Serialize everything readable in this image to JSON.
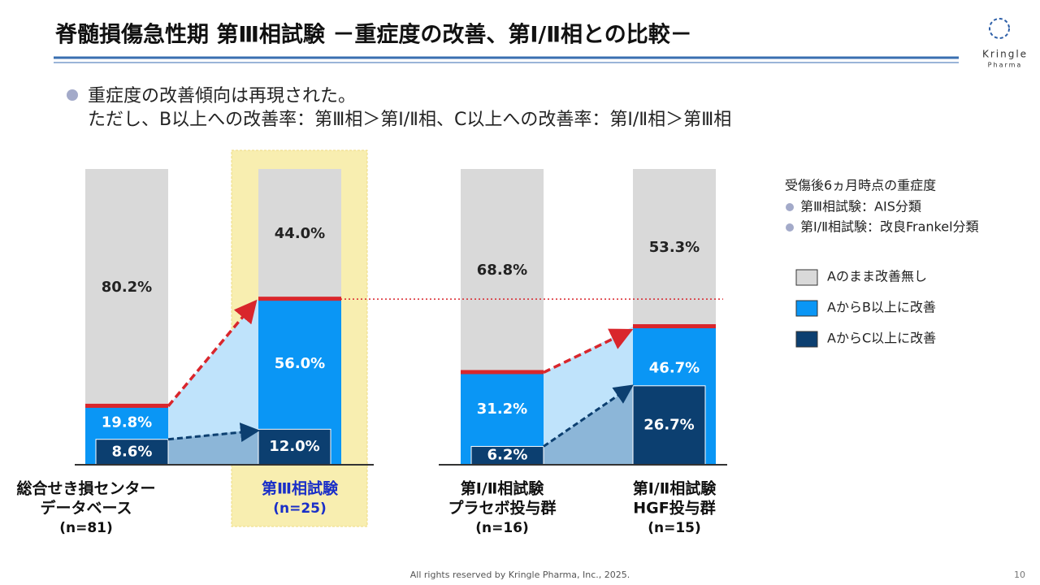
{
  "slide": {
    "title": "脊髄損傷急性期 第Ⅲ相試験 －重症度の改善、第Ⅰ/Ⅱ相との比較－",
    "bullets": [
      "重症度の改善傾向は再現された。",
      "ただし、B以上への改善率：第Ⅲ相＞第Ⅰ/Ⅱ相、C以上への改善率：第Ⅰ/Ⅱ相＞第Ⅲ相"
    ],
    "logo": [
      "Kringle",
      "Pharma"
    ],
    "footer": "All rights reserved by Kringle Pharma, Inc., 2025.",
    "page_number": "10"
  },
  "chart_data": {
    "type": "overlay_bar",
    "legend_title": "受傷後6ヵ月時点の重症度",
    "legend_notes": [
      "第Ⅲ相試験：AIS分類",
      "第Ⅰ/Ⅱ相試験：改良Frankel分類"
    ],
    "categories": [
      [
        "総合せき損センター",
        "データベース",
        "(n=81)"
      ],
      [
        "第Ⅲ相試験",
        "(n=25)"
      ],
      [
        "第Ⅰ/Ⅱ相試験",
        "プラセボ投与群",
        "(n=16)"
      ],
      [
        "第Ⅰ/Ⅱ相試験",
        "HGF投与群",
        "(n=15)"
      ]
    ],
    "series": [
      {
        "name": "Aのまま改善無し",
        "color": "#d9d9d9",
        "values": [
          80.2,
          44.0,
          68.8,
          53.3
        ],
        "value_labels": [
          "80.2%",
          "44.0%",
          "68.8%",
          "53.3%"
        ]
      },
      {
        "name": "AからB以上に改善",
        "color": "#0a96f5",
        "values": [
          19.8,
          56.0,
          31.2,
          46.7
        ],
        "value_labels": [
          "19.8%",
          "56.0%",
          "31.2%",
          "46.7%"
        ]
      },
      {
        "name": "AからC以上に改善",
        "color": "#0c3f70",
        "values": [
          8.6,
          12.0,
          6.2,
          26.7
        ],
        "value_labels": [
          "8.6%",
          "12.0%",
          "6.2%",
          "26.7%"
        ]
      }
    ]
  }
}
